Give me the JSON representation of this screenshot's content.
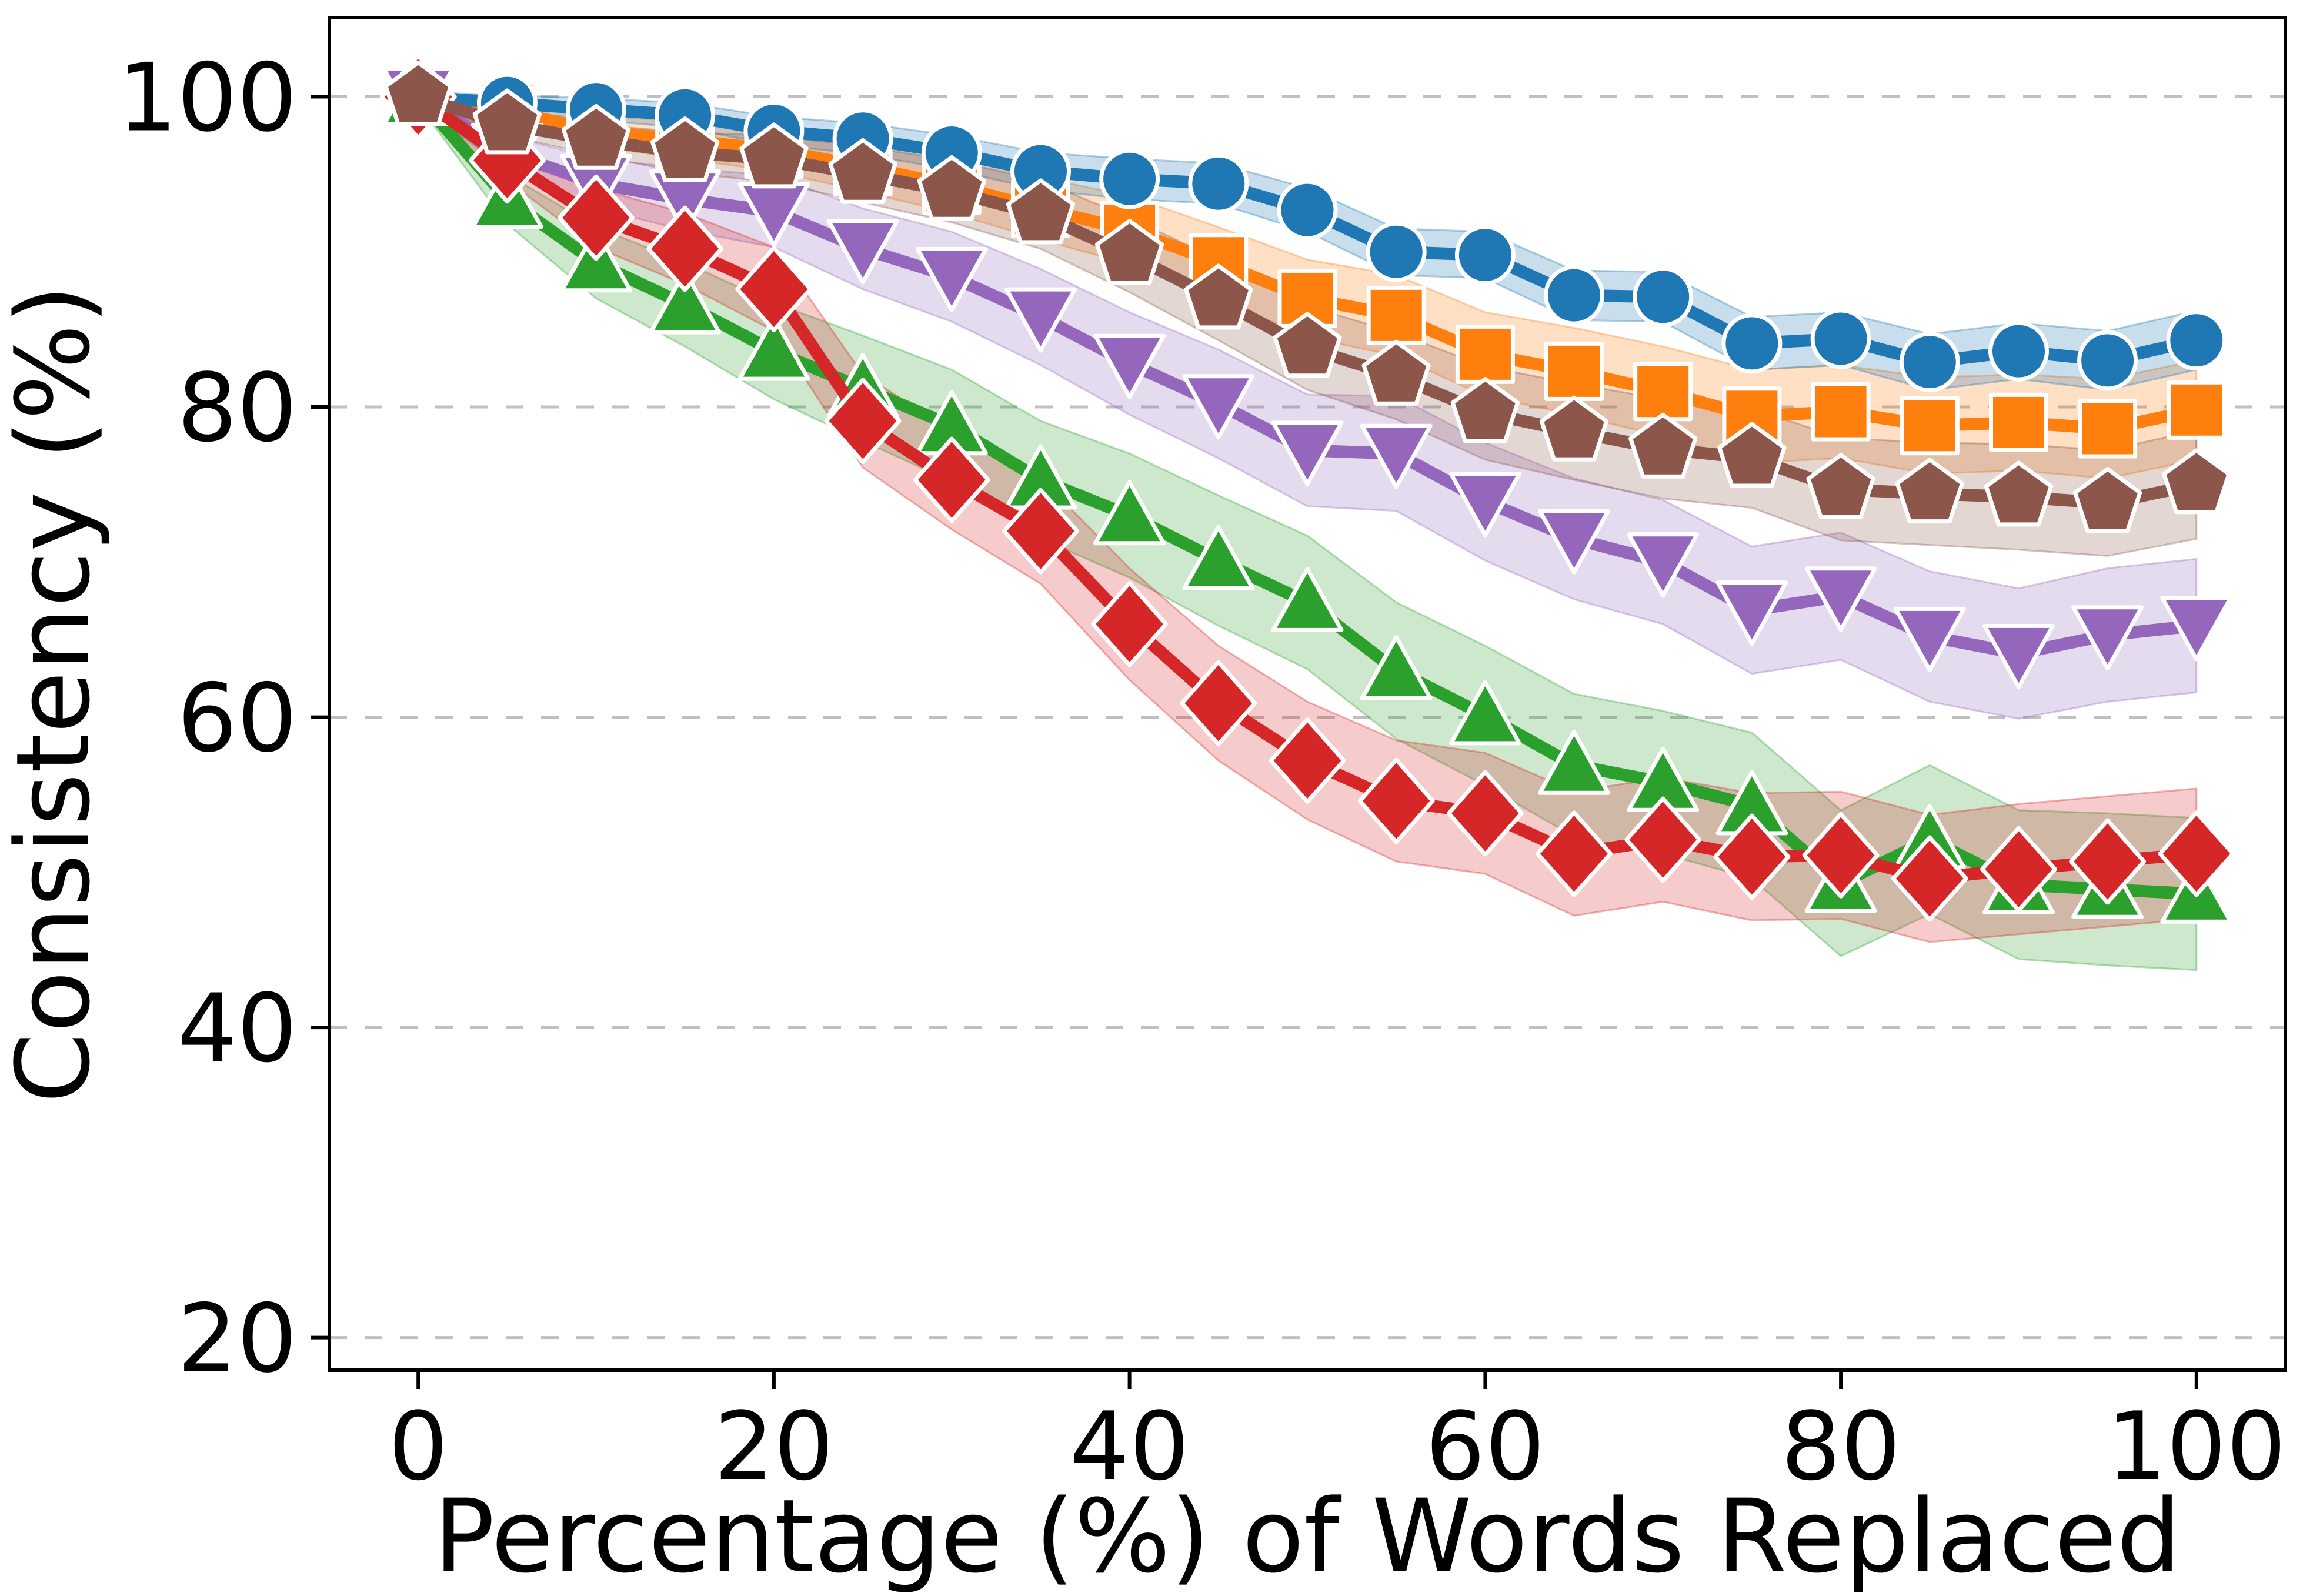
{
  "chart_data": {
    "type": "line",
    "title": "",
    "xlabel": "Percentage (%) of Words Replaced",
    "ylabel": "Consistency (%)",
    "x": [
      0,
      5,
      10,
      15,
      20,
      25,
      30,
      35,
      40,
      45,
      50,
      55,
      60,
      65,
      70,
      75,
      80,
      85,
      90,
      95,
      100
    ],
    "xticks": [
      0,
      20,
      40,
      60,
      80,
      100
    ],
    "yticks": [
      20,
      40,
      60,
      80,
      100
    ],
    "xlim": [
      -5,
      105
    ],
    "ylim": [
      17.9,
      105.1
    ],
    "grid": "horizontal dashed",
    "legend_position": "none",
    "grid_color": "#c0c0c0",
    "spine_color": "#000000",
    "series": [
      {
        "name": "orange-square",
        "marker": "square",
        "color": "#ff7f0e",
        "values": [
          100,
          99.1,
          97.8,
          97.2,
          96.6,
          95.5,
          94.3,
          92.8,
          91.4,
          89.3,
          87.0,
          85.9,
          83.4,
          82.3,
          81.0,
          79.4,
          79.7,
          78.8,
          79.0,
          78.6,
          79.8
        ],
        "band": [
          0.3,
          0.7,
          1.0,
          1.2,
          1.4,
          1.6,
          1.8,
          2.0,
          2.2,
          2.3,
          2.5,
          2.6,
          2.7,
          2.8,
          2.9,
          3.0,
          3.0,
          3.1,
          3.1,
          3.2,
          3.2
        ]
      },
      {
        "name": "blue-circle",
        "marker": "circle",
        "color": "#1f77b4",
        "values": [
          100,
          99.6,
          99.2,
          98.8,
          97.8,
          97.3,
          96.4,
          95.2,
          94.7,
          94.4,
          92.7,
          90.0,
          89.8,
          87.2,
          87.1,
          84.1,
          84.4,
          82.9,
          83.6,
          83.0,
          84.3
        ],
        "band": [
          0.3,
          0.5,
          0.7,
          0.8,
          0.9,
          1.0,
          1.1,
          1.2,
          1.3,
          1.3,
          1.4,
          1.5,
          1.5,
          1.6,
          1.6,
          1.7,
          1.7,
          1.8,
          1.8,
          1.9,
          1.9
        ]
      },
      {
        "name": "purple-triangle-down",
        "marker": "triangle-down",
        "color": "#9467bd",
        "values": [
          100,
          96.4,
          94.4,
          93.4,
          92.6,
          90.2,
          88.4,
          85.8,
          82.8,
          80.2,
          77.2,
          77.0,
          73.9,
          71.5,
          70.0,
          66.9,
          67.8,
          65.2,
          64.1,
          65.3,
          65.9
        ],
        "band": [
          0.5,
          1.1,
          1.6,
          2.0,
          2.3,
          2.6,
          2.9,
          3.1,
          3.3,
          3.5,
          3.6,
          3.7,
          3.8,
          3.9,
          4.0,
          4.1,
          4.1,
          4.2,
          4.2,
          4.3,
          4.3
        ]
      },
      {
        "name": "green-triangle-up",
        "marker": "triangle-up",
        "color": "#2ca02c",
        "values": [
          100,
          93.4,
          89.3,
          86.6,
          83.6,
          81.2,
          78.8,
          75.3,
          73.0,
          70.1,
          67.4,
          63.0,
          60.1,
          56.9,
          55.8,
          54.3,
          49.3,
          52.1,
          49.2,
          48.9,
          48.6
        ],
        "band": [
          0.5,
          1.6,
          2.3,
          2.7,
          3.1,
          3.4,
          3.6,
          3.8,
          4.0,
          4.2,
          4.3,
          4.4,
          4.5,
          4.6,
          4.6,
          4.7,
          4.7,
          4.8,
          4.8,
          4.9,
          4.9
        ]
      },
      {
        "name": "red-diamond",
        "marker": "diamond",
        "color": "#d62728",
        "values": [
          100,
          95.9,
          92.2,
          90.2,
          87.6,
          79.1,
          75.3,
          72.0,
          66.0,
          60.9,
          57.2,
          54.6,
          53.8,
          51.2,
          52.1,
          51.0,
          51.1,
          49.6,
          50.2,
          50.7,
          51.2
        ],
        "band": [
          0.5,
          1.3,
          1.9,
          2.3,
          2.7,
          3.0,
          3.2,
          3.4,
          3.6,
          3.7,
          3.8,
          3.9,
          3.9,
          4.0,
          4.0,
          4.1,
          4.1,
          4.1,
          4.2,
          4.2,
          4.2
        ]
      },
      {
        "name": "brown-pentagon",
        "marker": "pentagon",
        "color": "#8c564b",
        "values": [
          100,
          98.2,
          97.2,
          96.4,
          96.0,
          95.0,
          93.9,
          92.4,
          89.8,
          86.9,
          83.8,
          82.0,
          79.6,
          78.4,
          77.3,
          76.7,
          74.7,
          74.4,
          74.2,
          73.8,
          75.0
        ],
        "band": [
          0.3,
          0.7,
          1.0,
          1.3,
          1.5,
          1.8,
          2.0,
          2.2,
          2.4,
          2.6,
          2.7,
          2.8,
          3.0,
          3.1,
          3.2,
          3.2,
          3.3,
          3.3,
          3.4,
          3.4,
          3.5
        ]
      }
    ]
  }
}
